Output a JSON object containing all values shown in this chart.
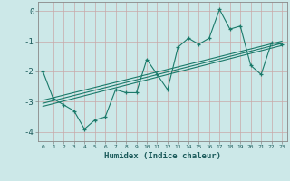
{
  "xlabel": "Humidex (Indice chaleur)",
  "ylabel": "",
  "bg_color": "#cce8e8",
  "grid_color": "#c8a8a8",
  "line_color": "#1a7a6a",
  "xlim": [
    -0.5,
    23.5
  ],
  "ylim": [
    -4.3,
    0.3
  ],
  "xticks": [
    0,
    1,
    2,
    3,
    4,
    5,
    6,
    7,
    8,
    9,
    10,
    11,
    12,
    13,
    14,
    15,
    16,
    17,
    18,
    19,
    20,
    21,
    22,
    23
  ],
  "yticks": [
    0,
    -1,
    -2,
    -3,
    -4
  ],
  "data_x": [
    0,
    1,
    2,
    3,
    4,
    5,
    6,
    7,
    8,
    9,
    10,
    11,
    12,
    13,
    14,
    15,
    16,
    17,
    18,
    19,
    20,
    21,
    22,
    23
  ],
  "data_y": [
    -2.0,
    -2.9,
    -3.1,
    -3.3,
    -3.9,
    -3.6,
    -3.5,
    -2.6,
    -2.7,
    -2.7,
    -1.6,
    -2.1,
    -2.6,
    -1.2,
    -0.9,
    -1.1,
    -0.9,
    0.05,
    -0.6,
    -0.5,
    -1.8,
    -2.1,
    -1.05,
    -1.1
  ],
  "trend_lines": [
    {
      "x": [
        0,
        23
      ],
      "y": [
        -2.95,
        -1.0
      ]
    },
    {
      "x": [
        0,
        23
      ],
      "y": [
        -3.05,
        -1.07
      ]
    },
    {
      "x": [
        0,
        23
      ],
      "y": [
        -3.15,
        -1.14
      ]
    }
  ]
}
